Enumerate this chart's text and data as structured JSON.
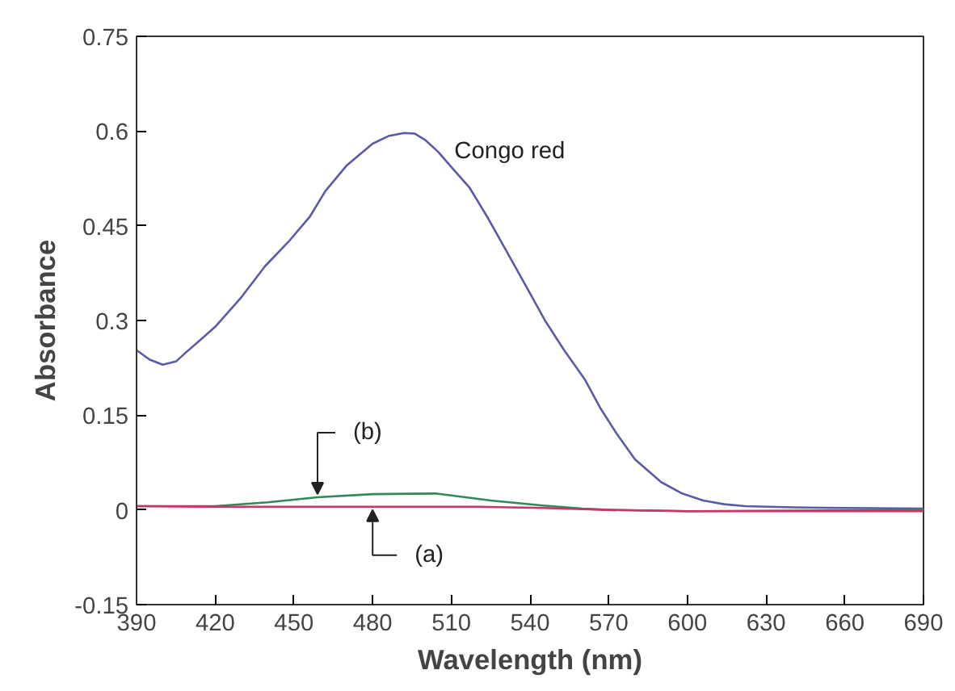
{
  "chart_data": {
    "type": "line",
    "xlabel": "Wavelength (nm)",
    "ylabel": "Absorbance",
    "xlim": [
      390,
      690
    ],
    "ylim": [
      -0.15,
      0.75
    ],
    "xticks": [
      390,
      420,
      450,
      480,
      510,
      540,
      570,
      600,
      630,
      660,
      690
    ],
    "yticks": [
      -0.15,
      0,
      0.15,
      0.3,
      0.45,
      0.6,
      0.75
    ],
    "grid": false,
    "marker": "none",
    "line_style": "solid",
    "series": [
      {
        "color": "#5a5aa8",
        "x": [
          390,
          395,
          400,
          405,
          409,
          414,
          420,
          430,
          439,
          448,
          456,
          462,
          470,
          480,
          486,
          492,
          496,
          500,
          505,
          510,
          517,
          524,
          531,
          540,
          546,
          553,
          561,
          567,
          573,
          580,
          590,
          598,
          606,
          614,
          622,
          640,
          660,
          690
        ],
        "values": [
          0.253,
          0.238,
          0.23,
          0.235,
          0.25,
          0.268,
          0.29,
          0.337,
          0.386,
          0.425,
          0.464,
          0.505,
          0.545,
          0.58,
          0.592,
          0.597,
          0.596,
          0.586,
          0.567,
          0.543,
          0.51,
          0.462,
          0.41,
          0.343,
          0.298,
          0.253,
          0.206,
          0.16,
          0.121,
          0.08,
          0.044,
          0.026,
          0.015,
          0.009,
          0.006,
          0.004,
          0.003,
          0.002
        ]
      },
      {
        "color": "#2e8b57",
        "x": [
          390,
          420,
          440,
          459,
          480,
          504,
          525,
          545,
          560,
          570,
          600,
          640,
          690
        ],
        "values": [
          0.006,
          0.006,
          0.012,
          0.02,
          0.025,
          0.026,
          0.015,
          0.007,
          0.002,
          0,
          -0.002,
          -0.001,
          0
        ]
      },
      {
        "color": "#cc3366",
        "x": [
          390,
          420,
          480,
          520,
          545,
          570,
          600,
          640,
          690
        ],
        "values": [
          0.006,
          0.005,
          0.005,
          0.005,
          0.003,
          0,
          -0.002,
          -0.002,
          -0.002
        ]
      }
    ],
    "annotations": [
      {
        "text": "Congo red",
        "x": 505,
        "y": 0.567
      },
      {
        "text": "(b)",
        "x": 459,
        "y": 0.02
      },
      {
        "text": "(a)",
        "x": 480,
        "y": 0.005
      }
    ]
  }
}
